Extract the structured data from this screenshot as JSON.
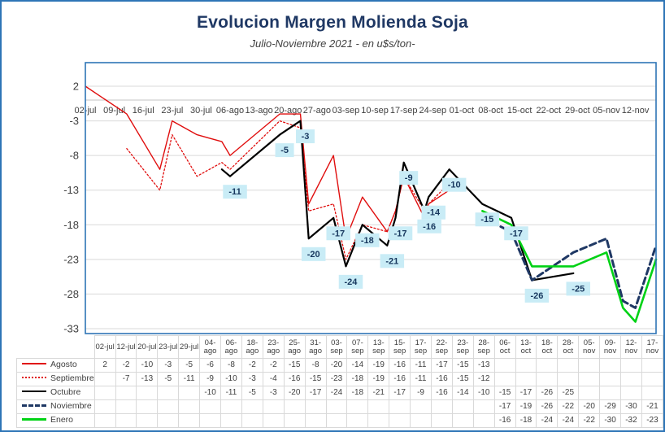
{
  "title": "Evolucion Margen Molienda Soja",
  "subtitle": "Julio-Noviembre 2021 - en u$s/ton-",
  "colors": {
    "frame": "#2E75B6",
    "plot_border": "#2E75B6",
    "title_text": "#1F3864",
    "gridline": "#D9D9D9",
    "zero_axis": "#C6C6C6",
    "axis_text": "#404040",
    "label_bg": "#C9ECF6",
    "label_text": "#17375E",
    "table_border": "#D9D9D9",
    "table_text": "#404040"
  },
  "chart_data": {
    "type": "line",
    "x_axis_labels": [
      "02-jul",
      "09-jul",
      "16-jul",
      "23-jul",
      "30-jul",
      "06-ago",
      "13-ago",
      "20-ago",
      "27-ago",
      "03-sep",
      "10-sep",
      "17-sep",
      "24-sep",
      "01-oct",
      "08-oct",
      "15-oct",
      "22-oct",
      "29-oct",
      "05-nov",
      "12-nov"
    ],
    "y_ticks": [
      2,
      -3,
      -8,
      -13,
      -18,
      -23,
      -28,
      -33
    ],
    "ylim": [
      -33,
      2
    ],
    "grid": "horizontal",
    "legend_position": "table-left",
    "categories": [
      "02-jul",
      "12-jul",
      "20-jul",
      "23-jul",
      "29-jul",
      "04-ago",
      "06-ago",
      "18-ago",
      "23-ago",
      "25-ago",
      "31-ago",
      "03-sep",
      "07-sep",
      "13-sep",
      "15-sep",
      "17-sep",
      "22-sep",
      "23-sep",
      "28-sep",
      "06-oct",
      "13-oct",
      "18-oct",
      "28-oct",
      "05-nov",
      "09-nov",
      "12-nov",
      "17-nov"
    ],
    "series": [
      {
        "name": "Agosto",
        "color": "#E00E0E",
        "dash": "solid",
        "width": 1.4,
        "values": [
          2,
          -2,
          -10,
          -3,
          -5,
          -6,
          -8,
          -2,
          -2,
          -15,
          -8,
          -20,
          -14,
          -19,
          -16,
          -11,
          -17,
          -15,
          -13,
          null,
          null,
          null,
          null,
          null,
          null,
          null,
          null
        ]
      },
      {
        "name": "Septiembre",
        "color": "#E00E0E",
        "dash": "dotted",
        "width": 1.3,
        "values": [
          null,
          -7,
          -13,
          -5,
          -11,
          -9,
          -10,
          -3,
          -4,
          -16,
          -15,
          -23,
          -18,
          -19,
          -16,
          -11,
          -16,
          -15,
          -12,
          null,
          null,
          null,
          null,
          null,
          null,
          null,
          null
        ]
      },
      {
        "name": "Octubre",
        "color": "#000000",
        "dash": "solid",
        "width": 2.2,
        "point_labels": true,
        "label_skip": [
          5
        ],
        "values": [
          null,
          null,
          null,
          null,
          null,
          -10,
          -11,
          -5,
          -3,
          -20,
          -17,
          -24,
          -18,
          -21,
          -17,
          -9,
          -16,
          -14,
          -10,
          -15,
          -17,
          -26,
          -25,
          null,
          null,
          null,
          null
        ]
      },
      {
        "name": "Noviembre",
        "color": "#1F3864",
        "dash": "dashed",
        "width": 3,
        "values": [
          null,
          null,
          null,
          null,
          null,
          null,
          null,
          null,
          null,
          null,
          null,
          null,
          null,
          null,
          null,
          null,
          null,
          null,
          null,
          -17,
          -19,
          -26,
          -22,
          -20,
          -29,
          -30,
          -21
        ]
      },
      {
        "name": "Enero",
        "color": "#00D215",
        "dash": "solid",
        "width": 2.6,
        "values": [
          null,
          null,
          null,
          null,
          null,
          null,
          null,
          null,
          null,
          null,
          null,
          null,
          null,
          null,
          null,
          null,
          null,
          null,
          null,
          -16,
          -18,
          -24,
          -24,
          -22,
          -30,
          -32,
          -23
        ]
      }
    ]
  }
}
